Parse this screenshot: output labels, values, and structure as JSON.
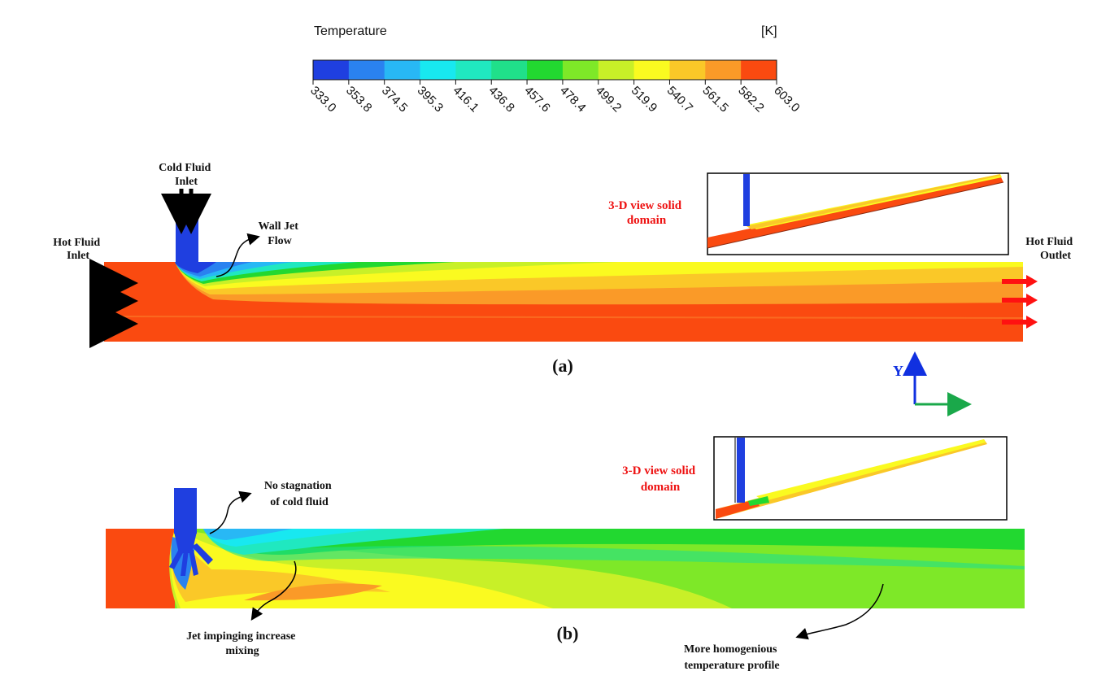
{
  "legend": {
    "title": "Temperature",
    "unit": "[K]",
    "ticks": [
      "333.0",
      "353.8",
      "374.5",
      "395.3",
      "416.1",
      "436.8",
      "457.6",
      "478.4",
      "499.2",
      "519.9",
      "540.7",
      "561.5",
      "582.2",
      "603.0"
    ],
    "colors": [
      "#1f3fe0",
      "#2a82f0",
      "#28b8f5",
      "#18e8f0",
      "#20e8c0",
      "#20e08a",
      "#22d830",
      "#7ee828",
      "#c8f028",
      "#fafa20",
      "#fac828",
      "#fa9a28",
      "#fa4a10"
    ]
  },
  "panel_a": {
    "label": "(a)",
    "cold_inlet": [
      "Cold Fluid",
      "Inlet"
    ],
    "hot_inlet": [
      "Hot Fluid",
      "Inlet"
    ],
    "hot_outlet": [
      "Hot Fluid",
      "Outlet"
    ],
    "wall_jet": [
      "Wall Jet",
      "Flow"
    ],
    "view_3d": [
      "3-D view solid",
      "domain"
    ]
  },
  "panel_b": {
    "label": "(b)",
    "no_stagnation": [
      "No stagnation",
      "of cold fluid"
    ],
    "jet_impinging": [
      "Jet impinging increase",
      "mixing"
    ],
    "homogenious": [
      "More homogenious",
      "temperature profile"
    ],
    "view_3d": [
      "3-D view solid",
      "domain"
    ]
  },
  "axes": {
    "y_label": "Y"
  }
}
